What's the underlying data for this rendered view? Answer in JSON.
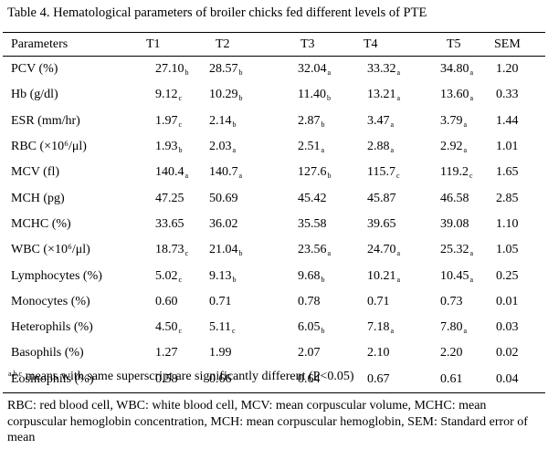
{
  "caption": "Table 4. Hematological parameters of broiler chicks fed different levels of PTE",
  "table": {
    "headers": [
      "Parameters",
      "T1",
      "T2",
      "T3",
      "T4",
      "T5",
      "SEM"
    ],
    "rows": [
      {
        "param": "PCV (%)",
        "cells": [
          {
            "v": "27.10",
            "s": "b"
          },
          {
            "v": "28.57",
            "s": "b"
          },
          {
            "v": "32.04",
            "s": "a"
          },
          {
            "v": "33.32",
            "s": "a"
          },
          {
            "v": "34.80",
            "s": "a"
          },
          {
            "v": "1.20",
            "s": ""
          }
        ]
      },
      {
        "param": "Hb (g/dl)",
        "cells": [
          {
            "v": "9.12",
            "s": "c"
          },
          {
            "v": "10.29",
            "s": "b"
          },
          {
            "v": "11.40",
            "s": "b"
          },
          {
            "v": "13.21",
            "s": "a"
          },
          {
            "v": "13.60",
            "s": "a"
          },
          {
            "v": "0.33",
            "s": ""
          }
        ]
      },
      {
        "param": "ESR (mm/hr)",
        "cells": [
          {
            "v": "1.97",
            "s": "c"
          },
          {
            "v": "2.14",
            "s": "b"
          },
          {
            "v": "2.87",
            "s": "b"
          },
          {
            "v": "3.47",
            "s": "a"
          },
          {
            "v": "3.79",
            "s": "a"
          },
          {
            "v": "1.44",
            "s": ""
          }
        ]
      },
      {
        "param": "RBC (×10⁶/μl)",
        "cells": [
          {
            "v": "1.93",
            "s": "b"
          },
          {
            "v": "2.03",
            "s": "a"
          },
          {
            "v": "2.51",
            "s": "a"
          },
          {
            "v": "2.88",
            "s": "a"
          },
          {
            "v": "2.92",
            "s": "a"
          },
          {
            "v": "1.01",
            "s": ""
          }
        ]
      },
      {
        "param": "MCV (fl)",
        "cells": [
          {
            "v": "140.4",
            "s": "a"
          },
          {
            "v": "140.7",
            "s": "a"
          },
          {
            "v": "127.6",
            "s": "b"
          },
          {
            "v": "115.7",
            "s": "c"
          },
          {
            "v": "119.2",
            "s": "c"
          },
          {
            "v": "1.65",
            "s": ""
          }
        ]
      },
      {
        "param": "MCH (pg)",
        "cells": [
          {
            "v": "47.25",
            "s": ""
          },
          {
            "v": "50.69",
            "s": ""
          },
          {
            "v": "45.42",
            "s": ""
          },
          {
            "v": "45.87",
            "s": ""
          },
          {
            "v": "46.58",
            "s": ""
          },
          {
            "v": "2.85",
            "s": ""
          }
        ]
      },
      {
        "param": "MCHC (%)",
        "cells": [
          {
            "v": "33.65",
            "s": ""
          },
          {
            "v": "36.02",
            "s": ""
          },
          {
            "v": "35.58",
            "s": ""
          },
          {
            "v": "39.65",
            "s": ""
          },
          {
            "v": "39.08",
            "s": ""
          },
          {
            "v": "1.10",
            "s": ""
          }
        ]
      },
      {
        "param": "WBC (×10⁶/μl)",
        "cells": [
          {
            "v": "18.73",
            "s": "c"
          },
          {
            "v": "21.04",
            "s": "b"
          },
          {
            "v": "23.56",
            "s": "a"
          },
          {
            "v": "24.70",
            "s": "a"
          },
          {
            "v": "25.32",
            "s": "a"
          },
          {
            "v": "1.05",
            "s": ""
          }
        ]
      },
      {
        "param": "Lymphocytes (%)",
        "cells": [
          {
            "v": "5.02",
            "s": "c"
          },
          {
            "v": "9.13",
            "s": "b"
          },
          {
            "v": "9.68",
            "s": "b"
          },
          {
            "v": "10.21",
            "s": "a"
          },
          {
            "v": "10.45",
            "s": "a"
          },
          {
            "v": "0.25",
            "s": ""
          }
        ]
      },
      {
        "param": "Monocytes (%)",
        "cells": [
          {
            "v": "0.60",
            "s": ""
          },
          {
            "v": "0.71",
            "s": ""
          },
          {
            "v": "0.78",
            "s": ""
          },
          {
            "v": "0.71",
            "s": ""
          },
          {
            "v": "0.73",
            "s": ""
          },
          {
            "v": "0.01",
            "s": ""
          }
        ]
      },
      {
        "param": "Heterophils (%)",
        "cells": [
          {
            "v": "4.50",
            "s": "c"
          },
          {
            "v": "5.11",
            "s": "c"
          },
          {
            "v": "6.05",
            "s": "b"
          },
          {
            "v": "7.18",
            "s": "a"
          },
          {
            "v": "7.80",
            "s": "a"
          },
          {
            "v": "0.03",
            "s": ""
          }
        ]
      },
      {
        "param": "Basophils (%)",
        "cells": [
          {
            "v": "1.27",
            "s": ""
          },
          {
            "v": "1.99",
            "s": ""
          },
          {
            "v": "2.07",
            "s": ""
          },
          {
            "v": "2.10",
            "s": ""
          },
          {
            "v": "2.20",
            "s": ""
          },
          {
            "v": "0.02",
            "s": ""
          }
        ]
      },
      {
        "param": "Eosinophils (%)",
        "cells": [
          {
            "v": "0.58",
            "s": ""
          },
          {
            "v": "0.66",
            "s": ""
          },
          {
            "v": "0.64",
            "s": ""
          },
          {
            "v": "0.67",
            "s": ""
          },
          {
            "v": "0.61",
            "s": ""
          },
          {
            "v": "0.04",
            "s": ""
          }
        ]
      }
    ]
  },
  "footnote": {
    "superscript": "a,b,c",
    "text": "  means with same superscript are significantly different (P<0.05)"
  },
  "abbreviations": "RBC: red blood cell, WBC: white blood cell, MCV: mean corpuscular volume, MCHC: mean corpuscular hemoglobin concentration, MCH: mean corpuscular hemoglobin, SEM: Standard error of mean"
}
